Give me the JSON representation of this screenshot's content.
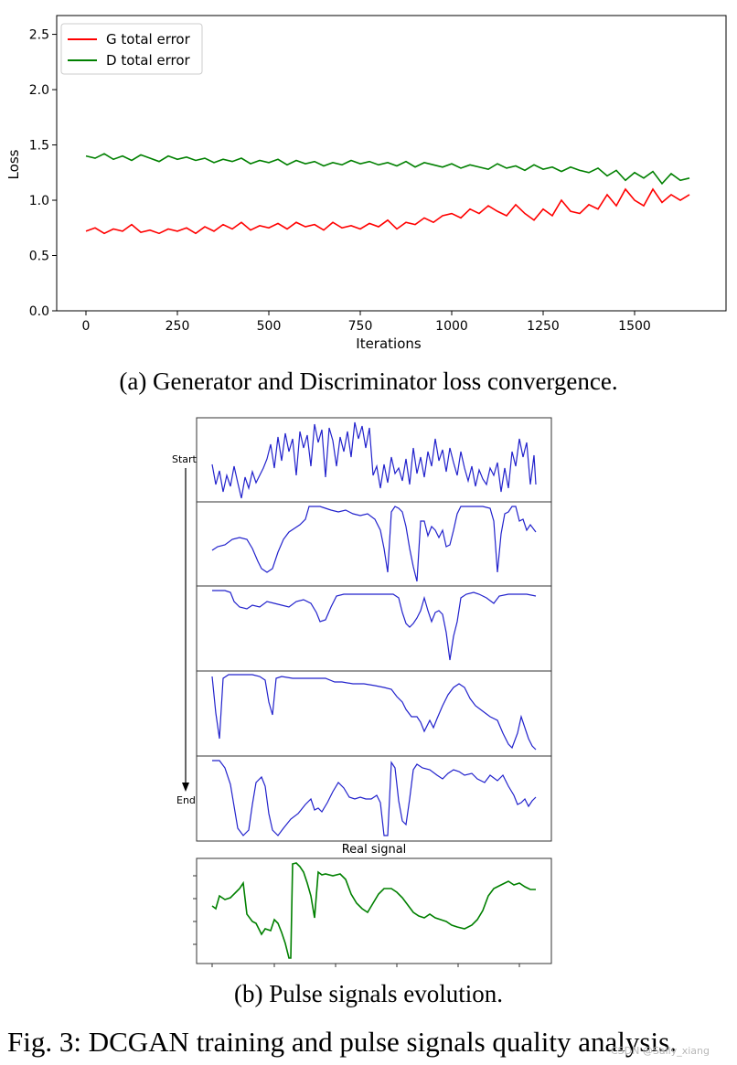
{
  "figure_a": {
    "caption": "(a) Generator and Discriminator loss convergence.",
    "chart_data": {
      "type": "line",
      "xlabel": "Iterations",
      "ylabel": "Loss",
      "xlim": [
        -80,
        1750
      ],
      "ylim": [
        0.0,
        2.67
      ],
      "x_ticks": [
        0,
        250,
        500,
        750,
        1000,
        1250,
        1500
      ],
      "y_ticks": [
        0.0,
        0.5,
        1.0,
        1.5,
        2.0,
        2.5
      ],
      "x_tick_labels": [
        "0",
        "250",
        "500",
        "750",
        "1000",
        "1250",
        "1500"
      ],
      "y_tick_labels": [
        "0.0",
        "0.5",
        "1.0",
        "1.5",
        "2.0",
        "2.5"
      ],
      "legend_position": "top-left",
      "grid": false,
      "series": [
        {
          "name": "G total error",
          "color": "#ff0000",
          "x": [
            0,
            25,
            50,
            75,
            100,
            125,
            150,
            175,
            200,
            225,
            250,
            275,
            300,
            325,
            350,
            375,
            400,
            425,
            450,
            475,
            500,
            525,
            550,
            575,
            600,
            625,
            650,
            675,
            700,
            725,
            750,
            775,
            800,
            825,
            850,
            875,
            900,
            925,
            950,
            975,
            1000,
            1025,
            1050,
            1075,
            1100,
            1125,
            1150,
            1175,
            1200,
            1225,
            1250,
            1275,
            1300,
            1325,
            1350,
            1375,
            1400,
            1425,
            1450,
            1475,
            1500,
            1525,
            1550,
            1575,
            1600,
            1625,
            1650
          ],
          "y": [
            0.72,
            0.75,
            0.7,
            0.74,
            0.72,
            0.78,
            0.71,
            0.73,
            0.7,
            0.74,
            0.72,
            0.75,
            0.7,
            0.76,
            0.72,
            0.78,
            0.74,
            0.8,
            0.73,
            0.77,
            0.75,
            0.79,
            0.74,
            0.8,
            0.76,
            0.78,
            0.73,
            0.8,
            0.75,
            0.77,
            0.74,
            0.79,
            0.76,
            0.82,
            0.74,
            0.8,
            0.78,
            0.84,
            0.8,
            0.86,
            0.88,
            0.84,
            0.92,
            0.88,
            0.95,
            0.9,
            0.86,
            0.96,
            0.88,
            0.82,
            0.92,
            0.86,
            1.0,
            0.9,
            0.88,
            0.96,
            0.92,
            1.05,
            0.95,
            1.1,
            1.0,
            0.95,
            1.1,
            0.98,
            1.05,
            1.0,
            1.05
          ]
        },
        {
          "name": "D total error",
          "color": "#008000",
          "x": [
            0,
            25,
            50,
            75,
            100,
            125,
            150,
            175,
            200,
            225,
            250,
            275,
            300,
            325,
            350,
            375,
            400,
            425,
            450,
            475,
            500,
            525,
            550,
            575,
            600,
            625,
            650,
            675,
            700,
            725,
            750,
            775,
            800,
            825,
            850,
            875,
            900,
            925,
            950,
            975,
            1000,
            1025,
            1050,
            1075,
            1100,
            1125,
            1150,
            1175,
            1200,
            1225,
            1250,
            1275,
            1300,
            1325,
            1350,
            1375,
            1400,
            1425,
            1450,
            1475,
            1500,
            1525,
            1550,
            1575,
            1600,
            1625,
            1650
          ],
          "y": [
            1.4,
            1.38,
            1.42,
            1.37,
            1.4,
            1.36,
            1.41,
            1.38,
            1.35,
            1.4,
            1.37,
            1.39,
            1.36,
            1.38,
            1.34,
            1.37,
            1.35,
            1.38,
            1.33,
            1.36,
            1.34,
            1.37,
            1.32,
            1.36,
            1.33,
            1.35,
            1.31,
            1.34,
            1.32,
            1.36,
            1.33,
            1.35,
            1.32,
            1.34,
            1.31,
            1.35,
            1.3,
            1.34,
            1.32,
            1.3,
            1.33,
            1.29,
            1.32,
            1.3,
            1.28,
            1.33,
            1.29,
            1.31,
            1.27,
            1.32,
            1.28,
            1.3,
            1.26,
            1.3,
            1.27,
            1.25,
            1.29,
            1.22,
            1.27,
            1.18,
            1.25,
            1.2,
            1.26,
            1.15,
            1.24,
            1.18,
            1.2
          ]
        }
      ]
    }
  },
  "figure_b": {
    "caption": "(b) Pulse signals evolution.",
    "arrow_start_label": "Start",
    "arrow_end_label": "End",
    "real_signal_title": "Real signal",
    "generated_color": "#0000cc",
    "real_color": "#008000"
  },
  "main_caption": "Fig. 3: DCGAN training and pulse signals quality analysis.",
  "watermark": "CSDN @Sally_xiang"
}
